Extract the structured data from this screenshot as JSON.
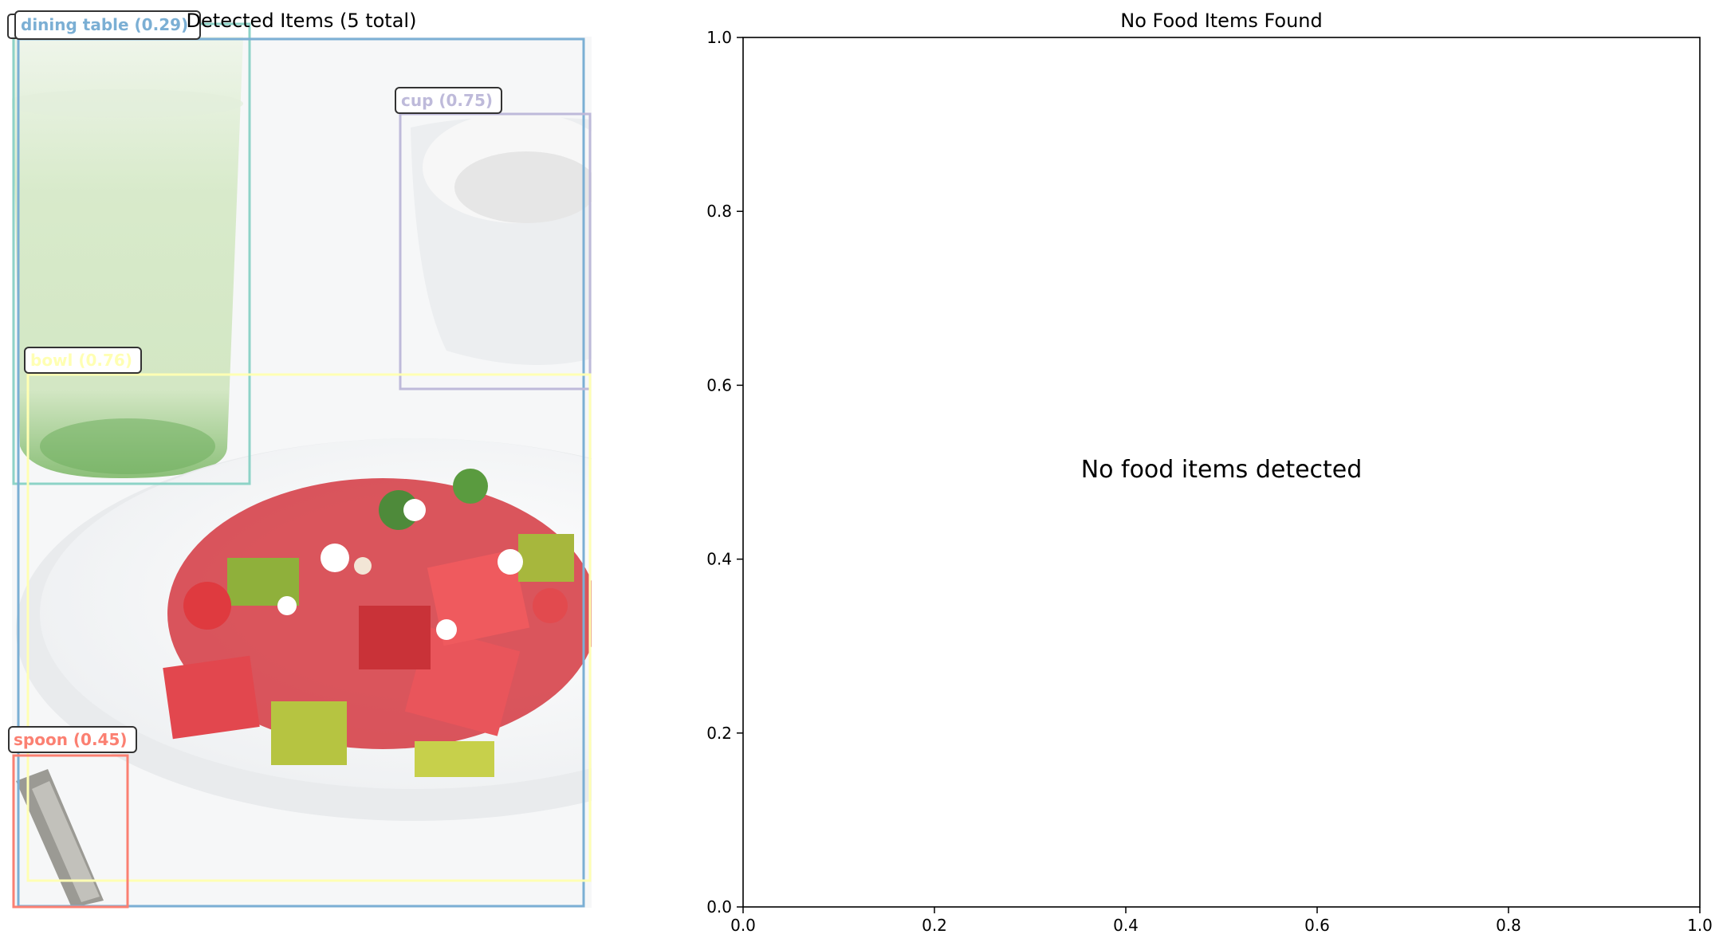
{
  "left_panel": {
    "title": "Detected Items (5 total)",
    "detections": [
      {
        "label": "dining table (0.29)",
        "color": "#7BAFD4"
      },
      {
        "label": "cup (0.75)",
        "color": "#BEBADA"
      },
      {
        "label": "bowl (0.76)",
        "color": "#FFFFB3"
      },
      {
        "label": "spoon (0.45)",
        "color": "#FB8072"
      },
      {
        "label": "",
        "color": "#8DD3C7"
      }
    ]
  },
  "right_panel": {
    "title": "No Food Items Found",
    "message": "No food items detected"
  },
  "chart_data": {
    "type": "scatter",
    "title": "No Food Items Found",
    "xlabel": "",
    "ylabel": "",
    "xlim": [
      0.0,
      1.0
    ],
    "ylim": [
      0.0,
      1.0
    ],
    "x_ticks": [
      "0.0",
      "0.2",
      "0.4",
      "0.6",
      "0.8",
      "1.0"
    ],
    "y_ticks": [
      "0.0",
      "0.2",
      "0.4",
      "0.6",
      "0.8",
      "1.0"
    ],
    "series": [],
    "annotation": "No food items detected",
    "grid": false
  }
}
